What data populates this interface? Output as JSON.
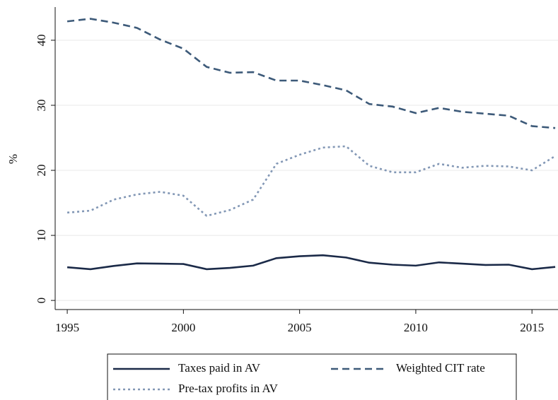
{
  "chart_data": {
    "type": "line",
    "y_label": "%",
    "x": [
      1995,
      1996,
      1997,
      1998,
      1999,
      2000,
      2001,
      2002,
      2003,
      2004,
      2005,
      2006,
      2007,
      2008,
      2009,
      2010,
      2011,
      2012,
      2013,
      2014,
      2015,
      2016
    ],
    "series": [
      {
        "name": "Taxes paid in AV",
        "color": "#1b2a48",
        "dash": "solid",
        "values": [
          5.1,
          4.8,
          5.3,
          5.7,
          5.65,
          5.6,
          4.8,
          5.0,
          5.35,
          6.5,
          6.8,
          6.95,
          6.6,
          5.8,
          5.5,
          5.35,
          5.85,
          5.65,
          5.45,
          5.5,
          4.8,
          5.15
        ]
      },
      {
        "name": "Weighted CIT rate",
        "color": "#3d5a79",
        "dash": "dashed",
        "values": [
          42.9,
          43.3,
          42.7,
          41.9,
          40.1,
          38.7,
          35.9,
          35.0,
          35.1,
          33.8,
          33.8,
          33.1,
          32.3,
          30.2,
          29.8,
          28.8,
          29.6,
          29.0,
          28.7,
          28.4,
          26.8,
          26.5
        ]
      },
      {
        "name": "Pre-tax profits in AV",
        "color": "#8297b5",
        "dash": "dotted",
        "values": [
          13.5,
          13.8,
          15.5,
          16.3,
          16.7,
          16.1,
          13.0,
          13.9,
          15.5,
          21.0,
          22.4,
          23.5,
          23.7,
          20.7,
          19.7,
          19.7,
          21.0,
          20.4,
          20.7,
          20.6,
          20.0,
          22.2
        ]
      }
    ],
    "xlim": [
      1994.48,
      2016.12
    ],
    "xticks": [
      1995,
      2000,
      2005,
      2010,
      2015
    ],
    "ylim": [
      -1.4,
      45.1
    ],
    "yticks": [
      0,
      10,
      20,
      30,
      40
    ],
    "grid": true,
    "legend": "bottom"
  }
}
